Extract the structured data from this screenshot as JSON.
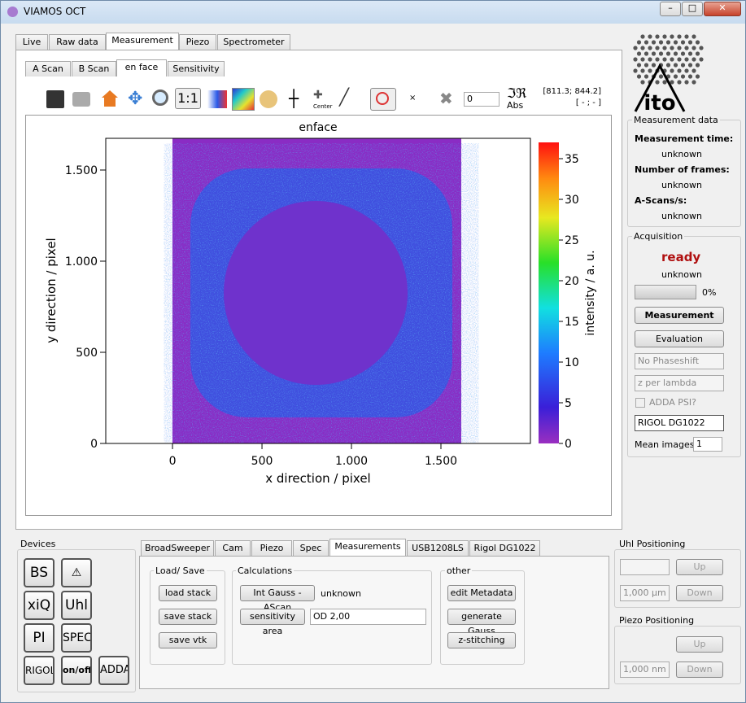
{
  "window": {
    "title": "VIAMOS OCT"
  },
  "main_tabs": [
    "Live",
    "Raw data",
    "Measurement",
    "Piezo",
    "Spectrometer"
  ],
  "sub_tabs": [
    "A Scan",
    "B Scan",
    "en face",
    "Sensitivity"
  ],
  "toolbar": {
    "ratio": "1:1",
    "center": "Center",
    "abs": "Abs",
    "marker": "×",
    "spin": "0",
    "coords": "[811.3; 844.2]",
    "coords2": "[ - ; - ]"
  },
  "plot": {
    "title": "enface",
    "xlabel": "x direction / pixel",
    "ylabel": "y direction / pixel",
    "xlim": [
      -373,
      2000
    ],
    "ylim": [
      0,
      1674
    ],
    "xticks": [
      0,
      500,
      {
        "value": 1000,
        "label": "1.000"
      },
      {
        "value": 1500,
        "label": "1.500"
      }
    ],
    "yticks": [
      0,
      500,
      {
        "value": 1000,
        "label": "1.000"
      },
      {
        "value": 1500,
        "label": "1.500"
      }
    ],
    "colorbar_label": "intensity / a. u.",
    "clim": [
      0,
      37
    ],
    "colorbar_ticks": [
      0,
      5,
      10,
      15,
      20,
      25,
      30,
      35
    ]
  },
  "logo": "ito",
  "measurement_data": {
    "title": "Measurement data",
    "time_label": "Measurement time:",
    "time": "unknown",
    "frames_label": "Number of frames:",
    "frames": "unknown",
    "ascans_label": "A-Scans/s:",
    "ascans": "unknown"
  },
  "acquisition": {
    "title": "Acquisition",
    "status": "ready",
    "detail": "unknown",
    "progress": "0%",
    "measure_btn": "Measurement",
    "eval_btn": "Evaluation",
    "phase": "No Phaseshift",
    "zmode": "z per lambda",
    "adda": "ADDA PSI?",
    "device": "RIGOL DG1022",
    "mean_label": "Mean images:",
    "mean": "1"
  },
  "devices": {
    "title": "Devices",
    "buttons": [
      "BS",
      "xiQ",
      "Uhl",
      "PI",
      "SPEC",
      "RIGOL",
      "on/off",
      "ADDA"
    ]
  },
  "bottom_tabs": [
    "BroadSweeper",
    "Cam",
    "Piezo",
    "Spec",
    "Measurements",
    "USB1208LS",
    "Rigol DG1022"
  ],
  "load_save": {
    "title": "Load/ Save",
    "buttons": [
      "load stack",
      "save stack",
      "save vtk"
    ]
  },
  "calculations": {
    "title": "Calculations",
    "gauss_btn": "Int Gauss - AScan",
    "gauss_value": "unknown",
    "sens_btn": "sensitivity area",
    "od": "OD 2,00"
  },
  "other": {
    "title": "other",
    "buttons": [
      "edit Metadata",
      "generate Gauss",
      "z-stitching"
    ]
  },
  "uhl": {
    "title": "Uhl Positioning",
    "up": "Up",
    "step": "1,000 µm",
    "down": "Down"
  },
  "piezo": {
    "title": "Piezo Positioning",
    "up": "Up",
    "step": "1,000 nm",
    "down": "Down"
  }
}
